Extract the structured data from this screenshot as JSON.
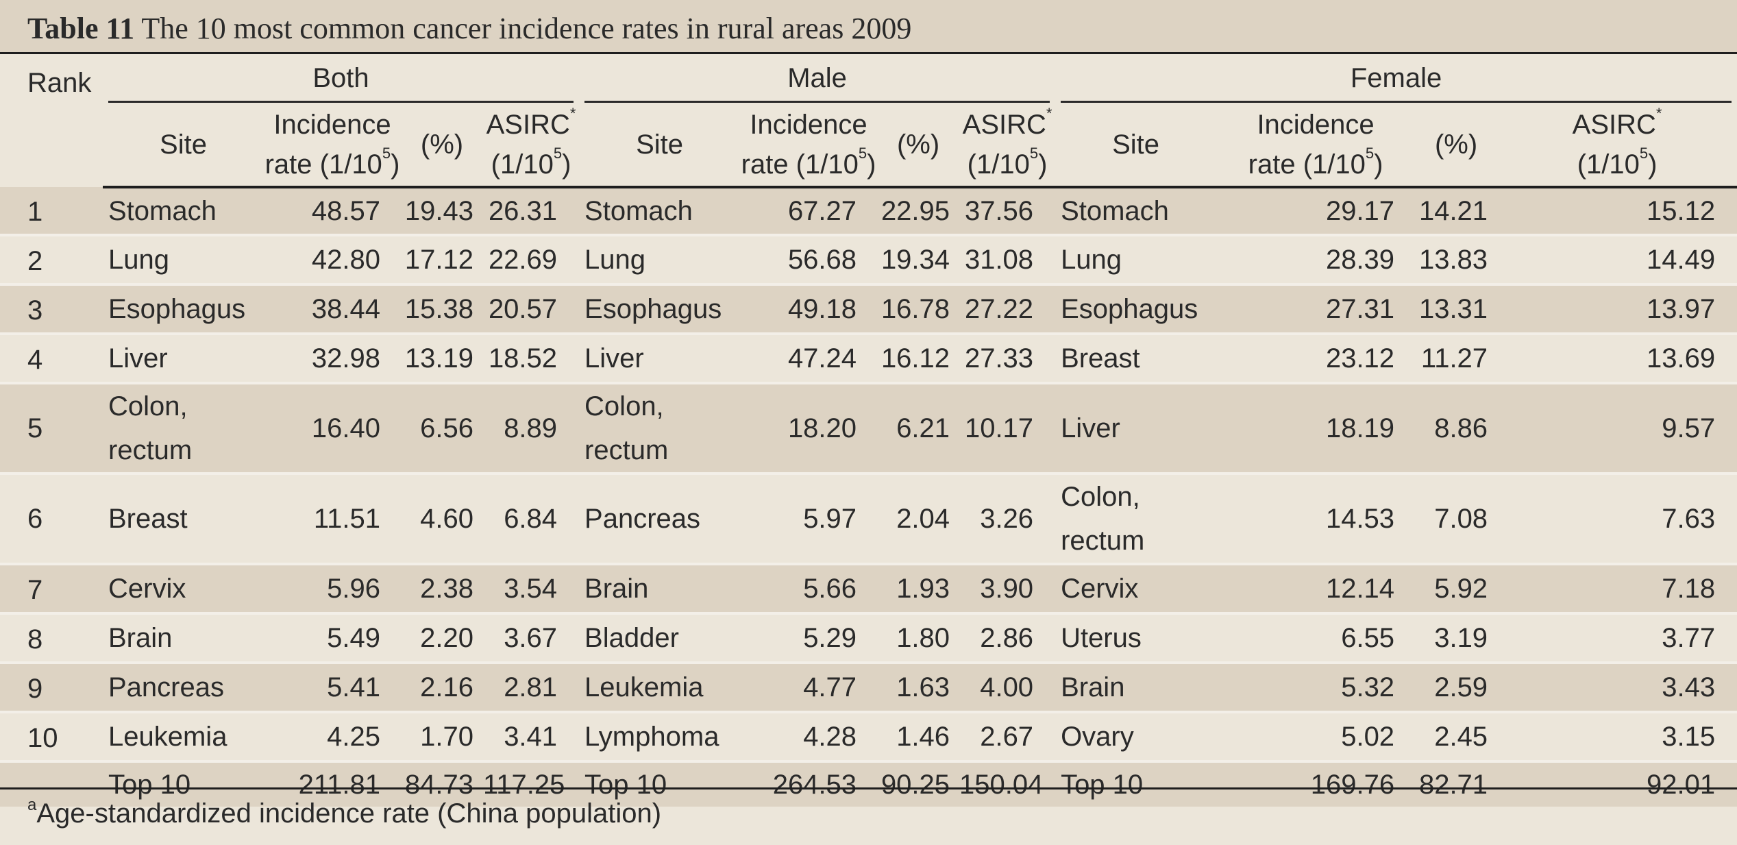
{
  "title": {
    "label": "Table 11",
    "text": "The 10 most common cancer incidence rates in rural areas 2009"
  },
  "headers": {
    "rank": "Rank",
    "groups": [
      "Both",
      "Male",
      "Female"
    ],
    "site": "Site",
    "incidence_line1": "Incidence",
    "incidence_line2": "rate (1/10",
    "pct": "(%)",
    "asirc": "ASIRC",
    "asirc_unit": "(1/10",
    "superscript_5": "5",
    "star": "*",
    "close_paren": ")"
  },
  "rows": [
    {
      "rank": "1",
      "both": [
        "Stomach",
        "48.57",
        "19.43",
        "26.31"
      ],
      "male": [
        "Stomach",
        "67.27",
        "22.95",
        "37.56"
      ],
      "female": [
        "Stomach",
        "29.17",
        "14.21",
        "15.12"
      ]
    },
    {
      "rank": "2",
      "both": [
        "Lung",
        "42.80",
        "17.12",
        "22.69"
      ],
      "male": [
        "Lung",
        "56.68",
        "19.34",
        "31.08"
      ],
      "female": [
        "Lung",
        "28.39",
        "13.83",
        "14.49"
      ]
    },
    {
      "rank": "3",
      "both": [
        "Esophagus",
        "38.44",
        "15.38",
        "20.57"
      ],
      "male": [
        "Esophagus",
        "49.18",
        "16.78",
        "27.22"
      ],
      "female": [
        "Esophagus",
        "27.31",
        "13.31",
        "13.97"
      ]
    },
    {
      "rank": "4",
      "both": [
        "Liver",
        "32.98",
        "13.19",
        "18.52"
      ],
      "male": [
        "Liver",
        "47.24",
        "16.12",
        "27.33"
      ],
      "female": [
        "Breast",
        "23.12",
        "11.27",
        "13.69"
      ]
    },
    {
      "rank": "5",
      "both": [
        "Colon, rectum",
        "16.40",
        "6.56",
        "8.89"
      ],
      "male": [
        "Colon, rectum",
        "18.20",
        "6.21",
        "10.17"
      ],
      "female": [
        "Liver",
        "18.19",
        "8.86",
        "9.57"
      ]
    },
    {
      "rank": "6",
      "both": [
        "Breast",
        "11.51",
        "4.60",
        "6.84"
      ],
      "male": [
        "Pancreas",
        "5.97",
        "2.04",
        "3.26"
      ],
      "female": [
        "Colon, rectum",
        "14.53",
        "7.08",
        "7.63"
      ]
    },
    {
      "rank": "7",
      "both": [
        "Cervix",
        "5.96",
        "2.38",
        "3.54"
      ],
      "male": [
        "Brain",
        "5.66",
        "1.93",
        "3.90"
      ],
      "female": [
        "Cervix",
        "12.14",
        "5.92",
        "7.18"
      ]
    },
    {
      "rank": "8",
      "both": [
        "Brain",
        "5.49",
        "2.20",
        "3.67"
      ],
      "male": [
        "Bladder",
        "5.29",
        "1.80",
        "2.86"
      ],
      "female": [
        "Uterus",
        "6.55",
        "3.19",
        "3.77"
      ]
    },
    {
      "rank": "9",
      "both": [
        "Pancreas",
        "5.41",
        "2.16",
        "2.81"
      ],
      "male": [
        "Leukemia",
        "4.77",
        "1.63",
        "4.00"
      ],
      "female": [
        "Brain",
        "5.32",
        "2.59",
        "3.43"
      ]
    },
    {
      "rank": "10",
      "both": [
        "Leukemia",
        "4.25",
        "1.70",
        "3.41"
      ],
      "male": [
        "Lymphoma",
        "4.28",
        "1.46",
        "2.67"
      ],
      "female": [
        "Ovary",
        "5.02",
        "2.45",
        "3.15"
      ]
    },
    {
      "rank": "",
      "both": [
        "Top 10",
        "211.81",
        "84.73",
        "117.25"
      ],
      "male": [
        "Top 10",
        "264.53",
        "90.25",
        "150.04"
      ],
      "female": [
        "Top 10",
        "169.76",
        "82.71",
        "92.01"
      ]
    }
  ],
  "footnote": {
    "marker": "a",
    "text": "Age-standardized incidence rate (China population)"
  },
  "colors": {
    "background": "#ece6da",
    "shaded_band": "#ddd3c3",
    "rule": "#1e1e1e",
    "text": "#2a2a2a"
  }
}
